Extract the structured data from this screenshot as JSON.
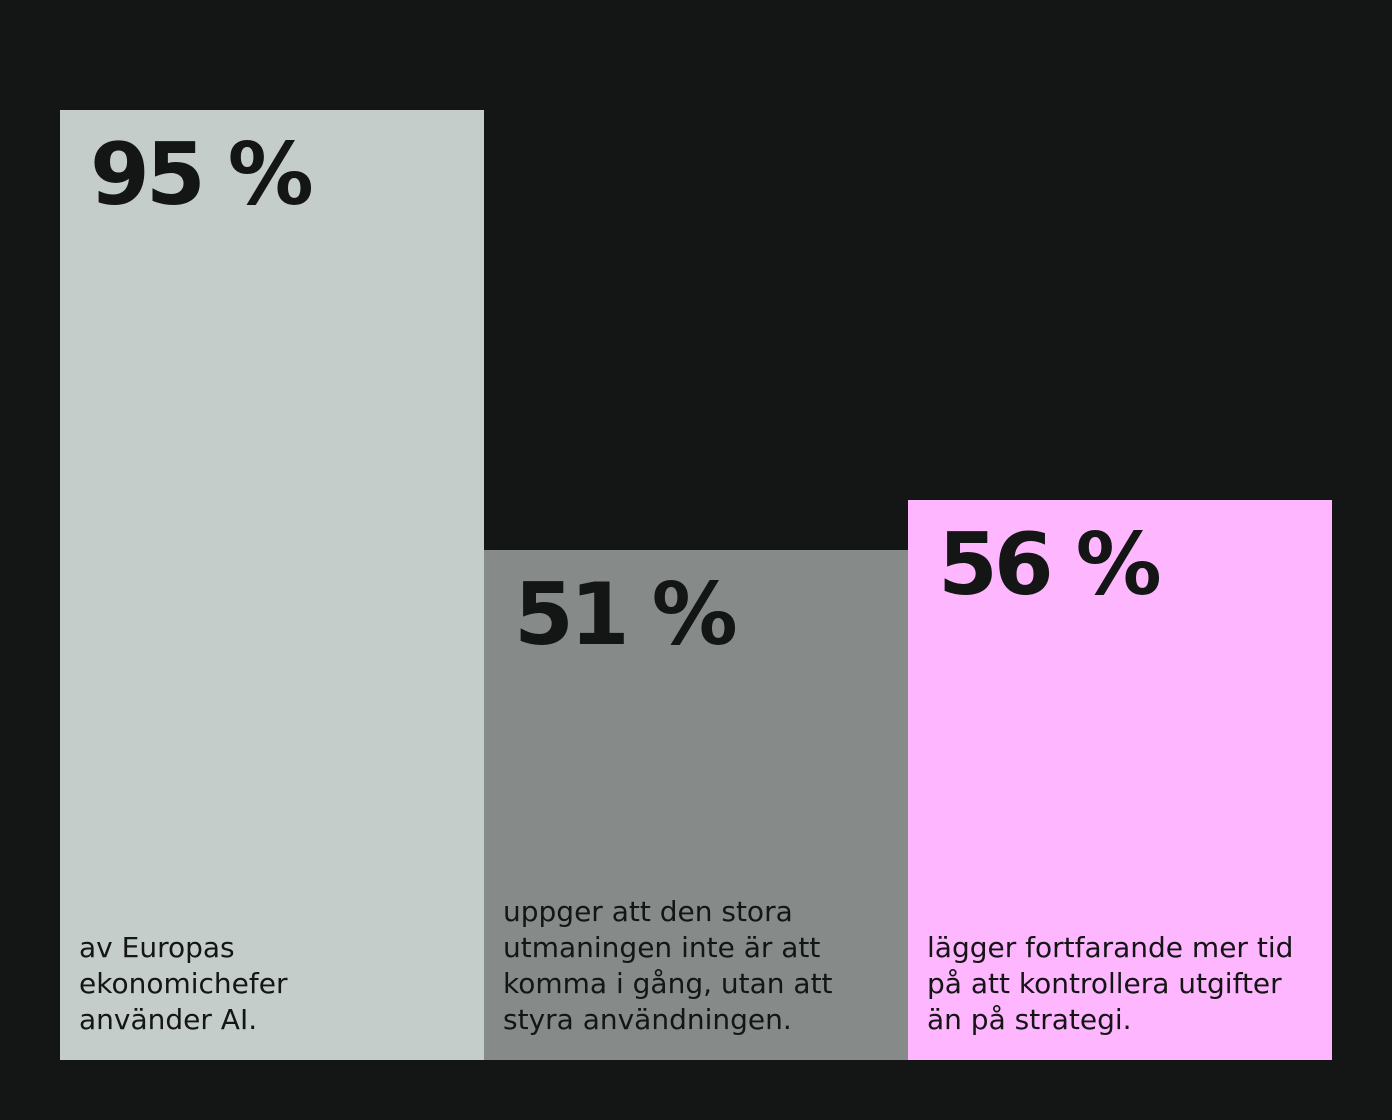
{
  "colors": {
    "background": "#141515",
    "text": "#141515"
  },
  "chart_data": {
    "type": "bar",
    "categories": [
      "av Europas ekonomichefer använder AI.",
      "uppger att den stora utmaningen inte är att komma i gång, utan att styra användningen.",
      "lägger fortfarande mer tid på att kontrollera utgifter än på strategi."
    ],
    "values": [
      95,
      51,
      56
    ],
    "value_labels": [
      "95 %",
      "51 %",
      "56 %"
    ],
    "captions": [
      [
        "av Europas",
        "ekonomichefer",
        "använder AI."
      ],
      [
        "uppger att den stora",
        "utmaningen inte är att",
        "komma i gång, utan att",
        "styra användningen."
      ],
      [
        "lägger fortfarande mer tid",
        "på att kontrollera utgifter",
        "än på strategi."
      ]
    ],
    "colors": [
      "#c5cdcb",
      "#868b8a",
      "#feb6fe"
    ],
    "ylim": [
      0,
      100
    ],
    "grid": false,
    "legend": "none"
  }
}
